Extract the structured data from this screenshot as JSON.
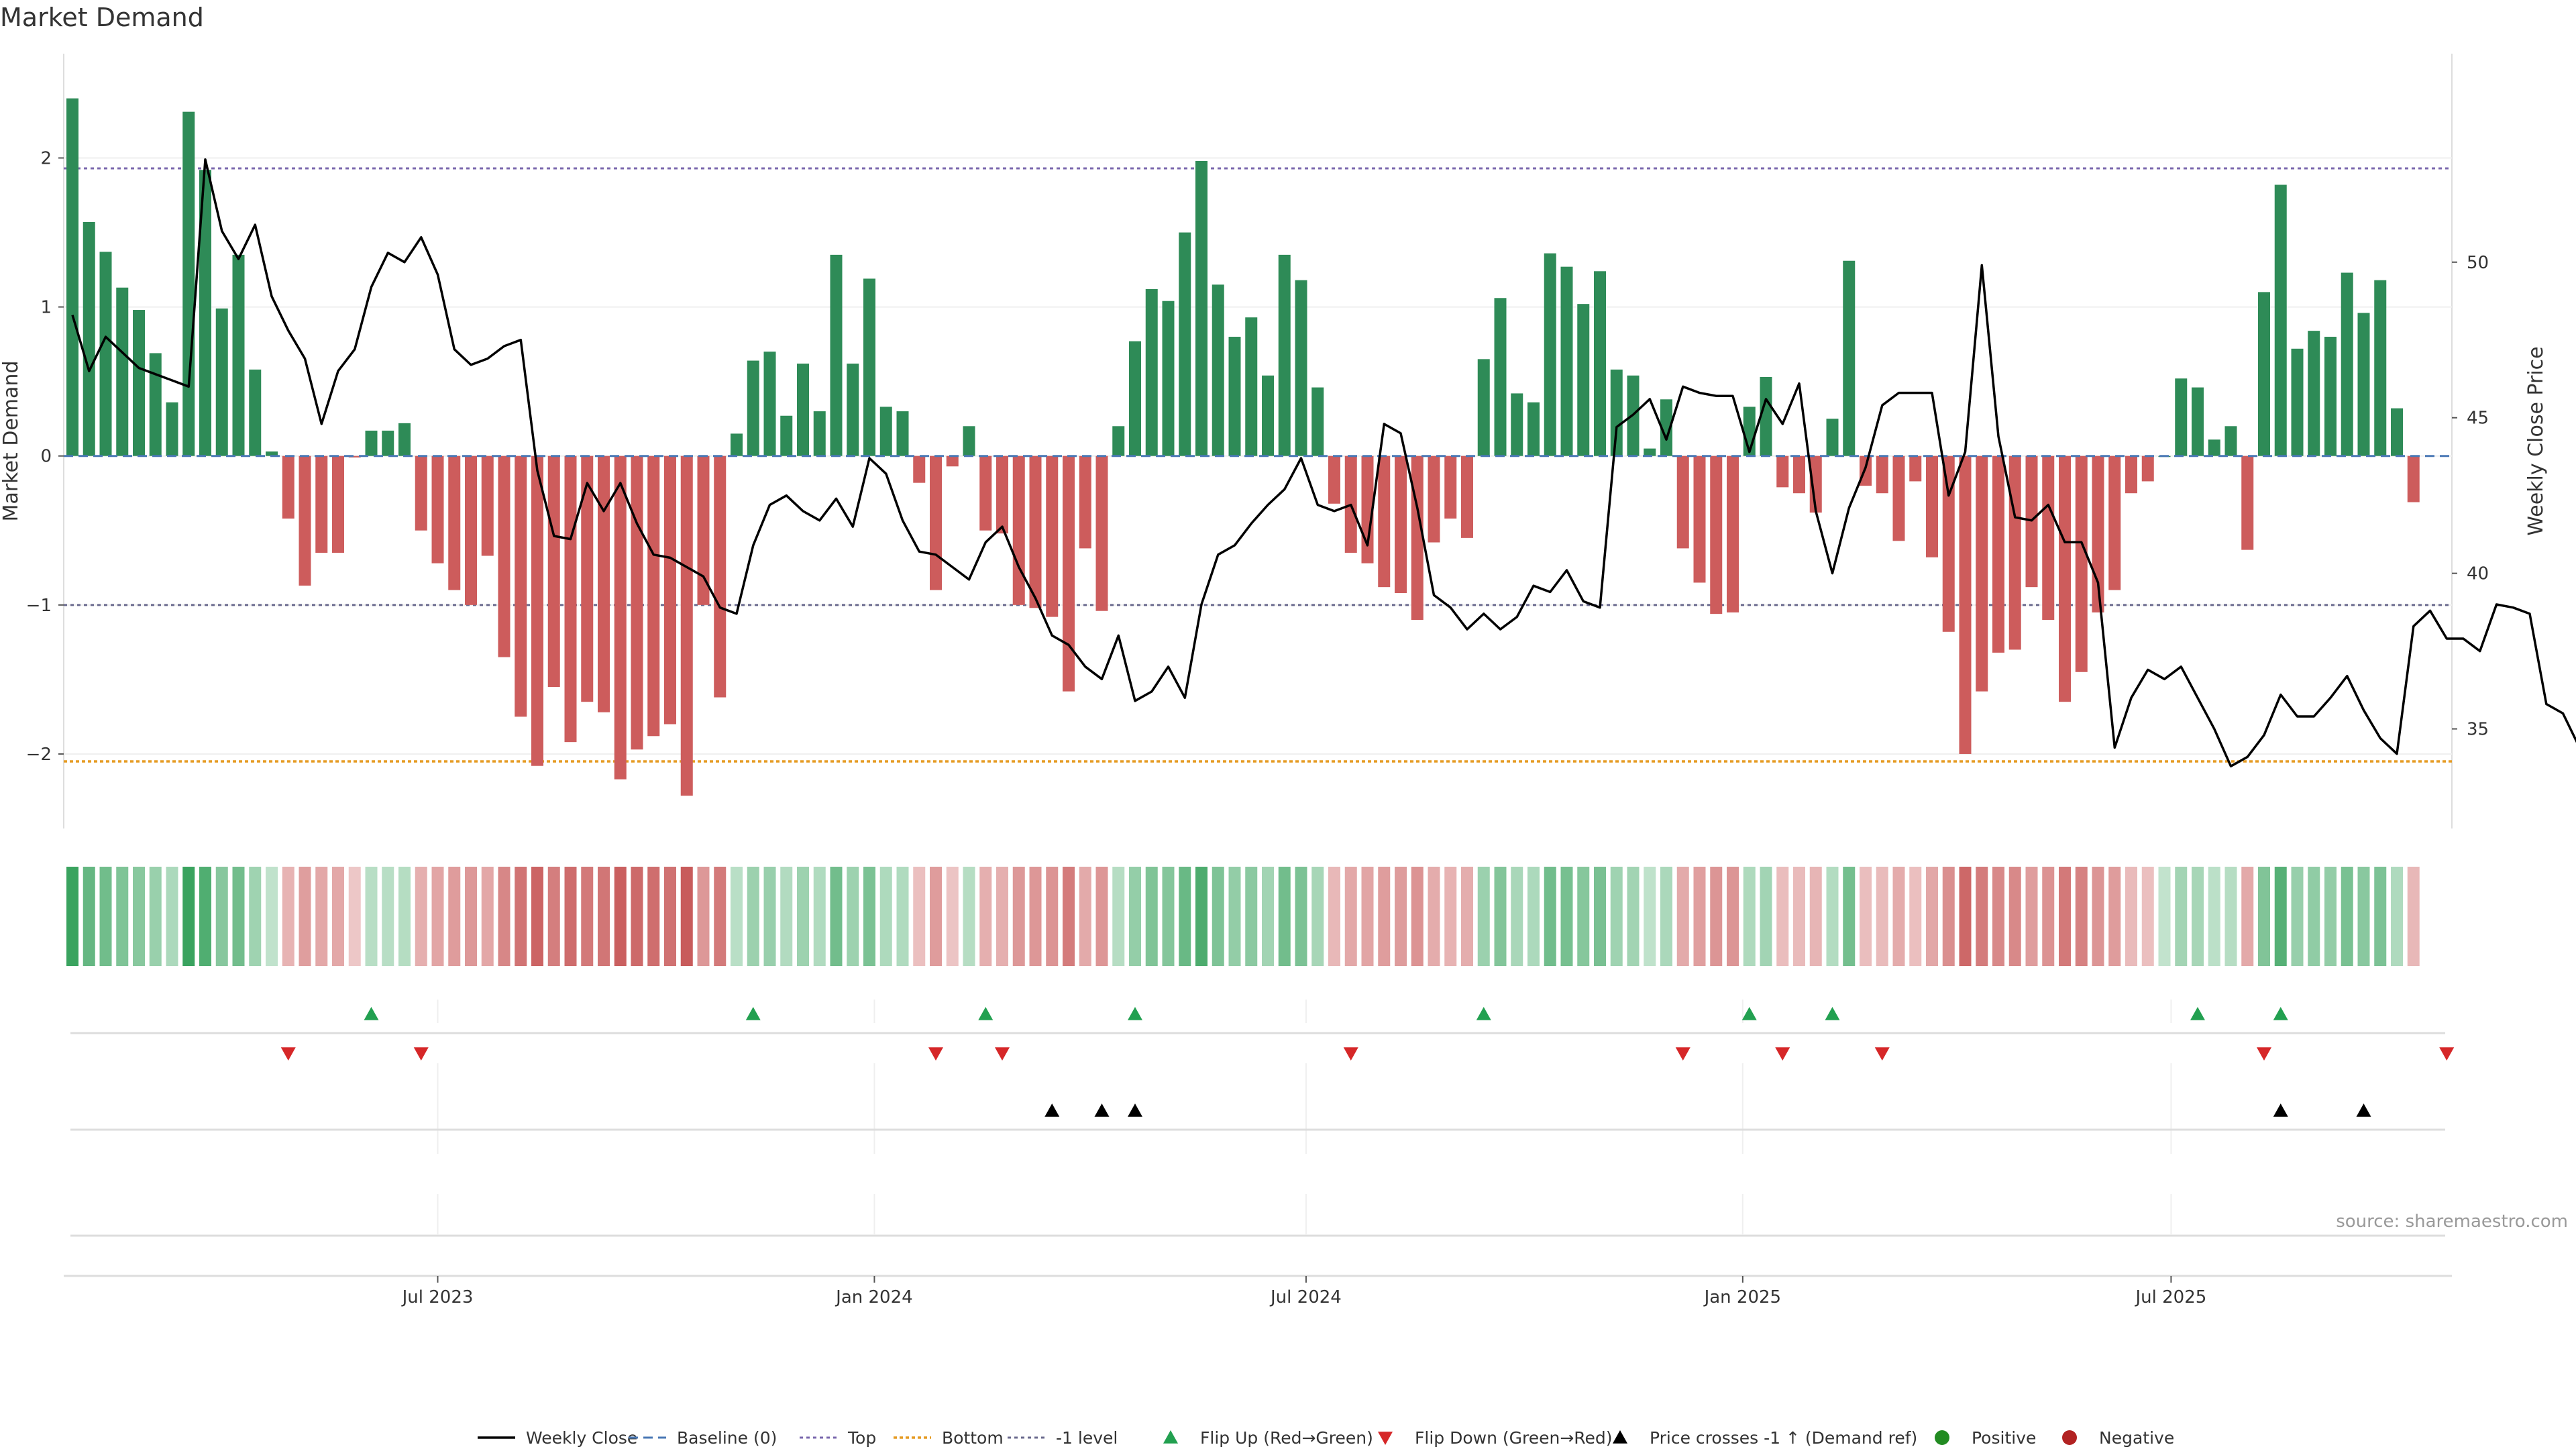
{
  "title": "Market Demand",
  "source": "source: sharemaestro.com",
  "chart_data": {
    "type": "bar",
    "title": "Market Demand",
    "ylabel": "Market Demand",
    "y2label": "Weekly Close Price",
    "ylim": [
      -2.5,
      2.7
    ],
    "y2lim": [
      31.8,
      56.7
    ],
    "yticks": [
      2,
      1,
      0,
      -1,
      -2
    ],
    "ytick_labels": [
      "2",
      "1",
      "0",
      "−1",
      "−2"
    ],
    "y2ticks": [
      50,
      45,
      40,
      35
    ],
    "xticks": [
      {
        "label": "Jul 2023",
        "week": 22
      },
      {
        "label": "Jan 2024",
        "week": 48.3
      },
      {
        "label": "Jul 2024",
        "week": 74.3
      },
      {
        "label": "Jan 2025",
        "week": 100.6
      },
      {
        "label": "Jul 2025",
        "week": 126.4
      }
    ],
    "reference_lines": {
      "top": 1.93,
      "bottom": -2.05,
      "minus_one": -1,
      "baseline": 0
    },
    "demand": [
      2.4,
      1.57,
      1.37,
      1.13,
      0.98,
      0.69,
      0.36,
      2.31,
      1.92,
      0.99,
      1.35,
      0.58,
      0.03,
      -0.42,
      -0.87,
      -0.65,
      -0.65,
      -0.01,
      0.17,
      0.17,
      0.22,
      -0.5,
      -0.72,
      -0.9,
      -1.0,
      -0.67,
      -1.35,
      -1.75,
      -2.08,
      -1.55,
      -1.92,
      -1.65,
      -1.72,
      -2.17,
      -1.97,
      -1.88,
      -1.8,
      -2.28,
      -1.0,
      -1.62,
      0.15,
      0.64,
      0.7,
      0.27,
      0.62,
      0.3,
      1.35,
      0.62,
      1.19,
      0.33,
      0.3,
      -0.18,
      -0.9,
      -0.07,
      0.2,
      -0.5,
      -0.52,
      -1.0,
      -1.02,
      -1.08,
      -1.58,
      -0.62,
      -1.04,
      0.2,
      0.77,
      1.12,
      1.04,
      1.5,
      1.98,
      1.15,
      0.8,
      0.93,
      0.54,
      1.35,
      1.18,
      0.46,
      -0.32,
      -0.65,
      -0.72,
      -0.88,
      -0.92,
      -1.1,
      -0.58,
      -0.42,
      -0.55,
      0.65,
      1.06,
      0.42,
      0.36,
      1.36,
      1.27,
      1.02,
      1.24,
      0.58,
      0.54,
      0.05,
      0.38,
      -0.62,
      -0.85,
      -1.06,
      -1.05,
      0.33,
      0.53,
      -0.21,
      -0.25,
      -0.38,
      0.25,
      1.31,
      -0.2,
      -0.25,
      -0.57,
      -0.17,
      -0.68,
      -1.18,
      -2.0,
      -1.58,
      -1.32,
      -1.3,
      -0.88,
      -1.1,
      -1.65,
      -1.45,
      -1.05,
      -0.9,
      -0.25,
      -0.17,
      0.0,
      0.52,
      0.46,
      0.11,
      0.2,
      -0.63,
      1.1,
      1.82,
      0.72,
      0.84,
      0.8,
      1.23,
      0.96,
      1.18,
      0.32,
      -0.31
    ],
    "close": [
      48.3,
      46.5,
      47.6,
      47.1,
      46.6,
      46.4,
      46.2,
      46.0,
      53.3,
      51.0,
      50.1,
      51.2,
      48.9,
      47.8,
      46.9,
      44.8,
      46.5,
      47.2,
      49.2,
      50.3,
      50.0,
      50.8,
      49.6,
      47.2,
      46.7,
      46.9,
      47.3,
      47.5,
      43.3,
      41.2,
      41.1,
      42.9,
      42.0,
      42.9,
      41.6,
      40.6,
      40.5,
      40.2,
      39.9,
      38.9,
      38.7,
      40.9,
      42.2,
      42.5,
      42.0,
      41.7,
      42.4,
      41.5,
      43.7,
      43.2,
      41.7,
      40.7,
      40.6,
      40.2,
      39.8,
      41.0,
      41.5,
      40.2,
      39.2,
      38.0,
      37.7,
      37.0,
      36.6,
      38.0,
      35.9,
      36.2,
      37.0,
      36.0,
      39.0,
      40.6,
      40.9,
      41.6,
      42.2,
      42.7,
      43.7,
      42.2,
      42.0,
      42.2,
      40.9,
      44.8,
      44.5,
      42.1,
      39.3,
      38.9,
      38.2,
      38.7,
      38.2,
      38.6,
      39.6,
      39.4,
      40.1,
      39.1,
      38.9,
      44.7,
      45.1,
      45.6,
      44.3,
      46.0,
      45.8,
      45.7,
      45.7,
      43.9,
      45.6,
      44.8,
      46.1,
      42.0,
      40.0,
      42.1,
      43.4,
      45.4,
      45.8,
      45.8,
      45.8,
      42.5,
      43.9,
      49.9,
      44.4,
      41.8,
      41.7,
      42.2,
      41.0,
      41.0,
      39.7,
      34.4,
      36.0,
      36.9,
      36.6,
      37.0,
      36.0,
      35.0,
      33.8,
      34.1,
      34.8,
      36.1,
      35.4,
      35.4,
      36.0,
      36.7,
      35.6,
      34.7,
      34.2,
      38.3,
      38.8,
      37.9,
      37.9,
      37.5,
      39.0,
      38.9,
      38.7,
      35.8,
      35.5,
      34.4
    ],
    "flip_up_weeks": [
      18,
      41,
      55,
      64,
      85,
      101,
      106,
      128,
      133
    ],
    "flip_down_weeks": [
      13,
      21,
      52,
      56,
      77,
      97,
      103,
      109,
      132,
      143
    ],
    "price_cross_weeks": [
      59,
      62,
      64,
      133,
      138
    ],
    "legend": [
      {
        "key": "weekly-close",
        "label": "Weekly Close"
      },
      {
        "key": "baseline",
        "label": "Baseline (0)"
      },
      {
        "key": "top",
        "label": "Top"
      },
      {
        "key": "bottom",
        "label": "Bottom"
      },
      {
        "key": "minus-one",
        "label": "-1 level"
      },
      {
        "key": "flip-up",
        "label": "Flip Up (Red→Green)"
      },
      {
        "key": "flip-down",
        "label": "Flip Down (Green→Red)"
      },
      {
        "key": "price-cross",
        "label": "Price crosses -1 ↑ (Demand ref)"
      },
      {
        "key": "positive",
        "label": "Positive"
      },
      {
        "key": "negative",
        "label": "Negative"
      }
    ]
  },
  "colors": {
    "positive": "#2e8b57",
    "negative": "#cd5c5c",
    "price": "#000000",
    "top": "#7b68ae",
    "bottom": "#e69c24",
    "minus_one": "#6b6b8e",
    "baseline": "#4a78b5",
    "flip_up": "#22a050",
    "flip_down": "#d62728",
    "legend_positive": "#228b22",
    "legend_negative": "#b22222"
  }
}
